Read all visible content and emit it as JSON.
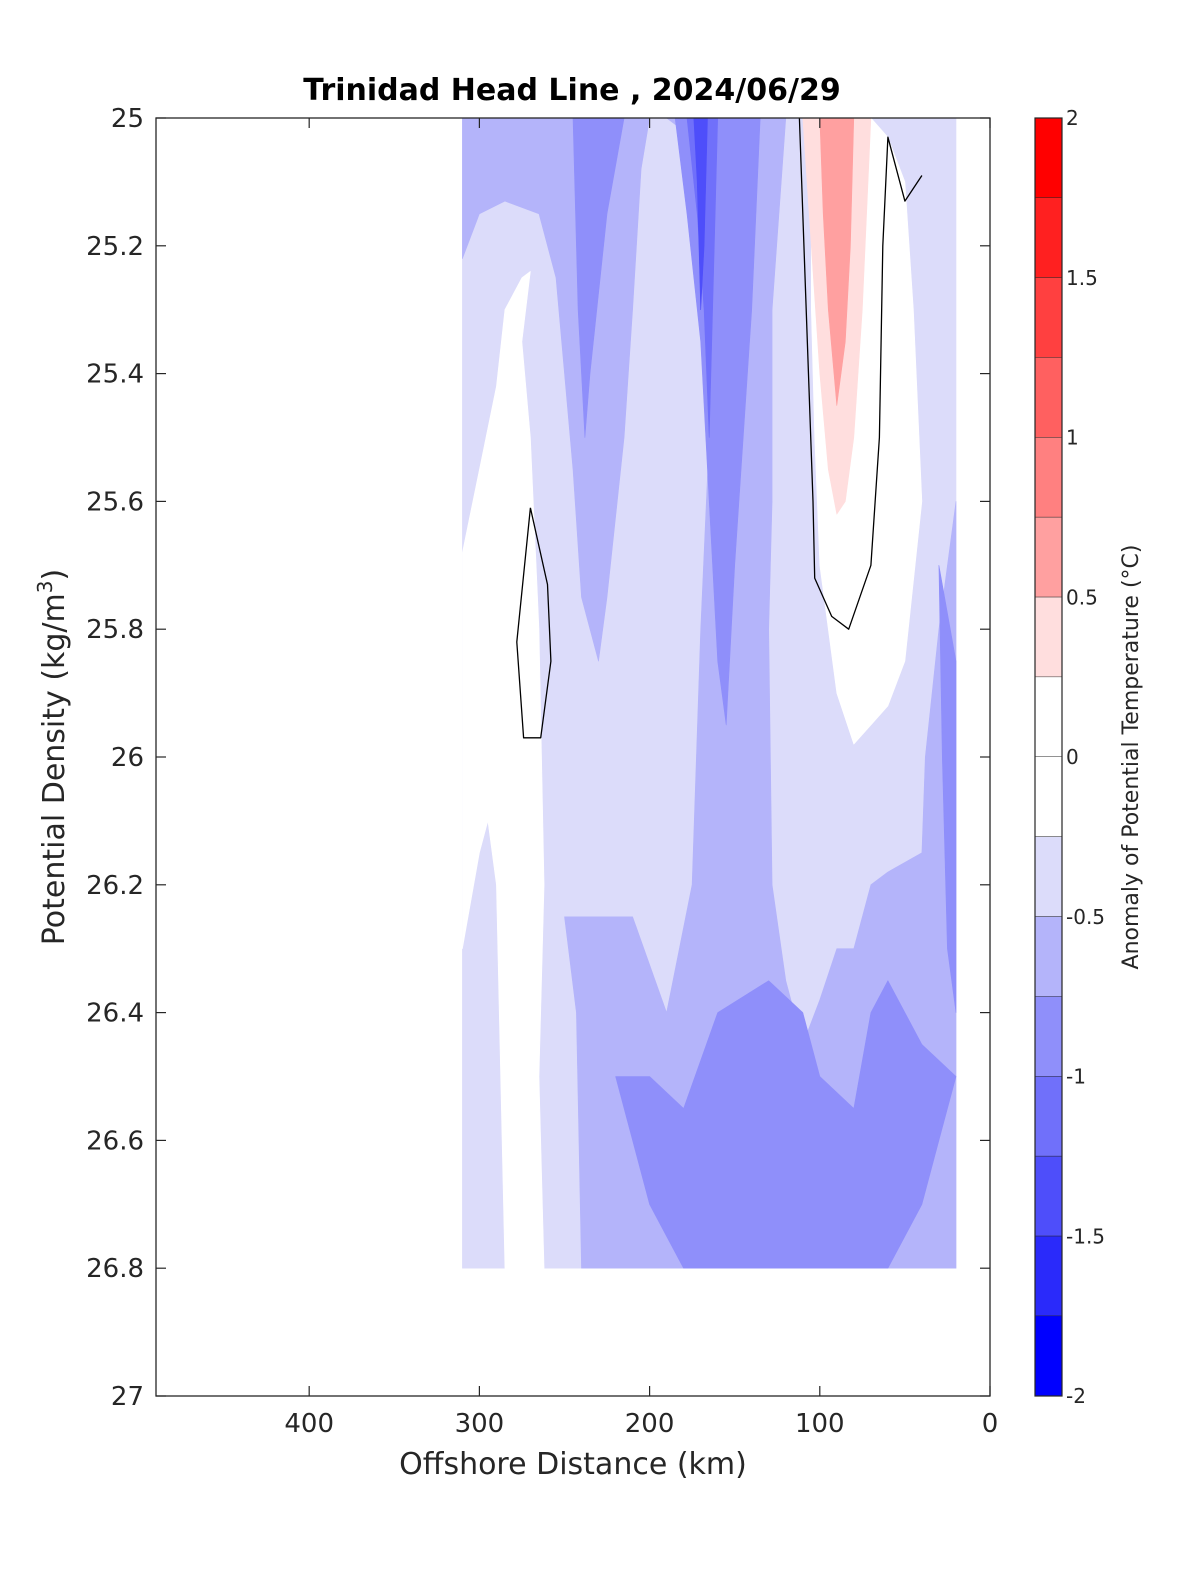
{
  "chart_data": {
    "type": "heatmap",
    "subtype": "filled-contour",
    "title": "Trinidad Head Line , 2024/06/29",
    "xlabel": "Offshore Distance (km)",
    "ylabel": "Potential Density (kg/m",
    "ylabel_sup": "3",
    "ylabel_close": ")",
    "xlim": [
      490,
      0
    ],
    "x_reversed": true,
    "ylim": [
      25,
      27
    ],
    "y_reversed": true,
    "x_ticks": [
      400,
      300,
      200,
      100,
      0
    ],
    "y_ticks": [
      25,
      25.2,
      25.4,
      25.6,
      25.8,
      26,
      26.2,
      26.4,
      26.6,
      26.8,
      27
    ],
    "y_tick_labels": [
      "25",
      "25.2",
      "25.4",
      "25.6",
      "25.8",
      "26",
      "26.2",
      "26.4",
      "26.6",
      "26.8",
      "27"
    ],
    "data_extent": {
      "x": [
        310,
        20
      ],
      "y": [
        25,
        26.8
      ]
    },
    "colorbar": {
      "label": "Anomaly of Potential Temperature (°C)",
      "range": [
        -2,
        2
      ],
      "tick_values": [
        2,
        1.5,
        1,
        0.5,
        0,
        -0.5,
        -1,
        -1.5,
        -2
      ],
      "tick_labels": [
        "2",
        "1.5",
        "1",
        "0.5",
        "0",
        "-0.5",
        "-1",
        "-1.5",
        "-2"
      ],
      "levels": [
        {
          "min": 1.75,
          "max": 2.0,
          "color": "#ff0000"
        },
        {
          "min": 1.5,
          "max": 1.75,
          "color": "#ff2020"
        },
        {
          "min": 1.25,
          "max": 1.5,
          "color": "#ff4040"
        },
        {
          "min": 1.0,
          "max": 1.25,
          "color": "#ff6060"
        },
        {
          "min": 0.75,
          "max": 1.0,
          "color": "#ff8080"
        },
        {
          "min": 0.5,
          "max": 0.75,
          "color": "#ffa0a0"
        },
        {
          "min": 0.25,
          "max": 0.5,
          "color": "#ffdede"
        },
        {
          "min": 0.0,
          "max": 0.25,
          "color": "#ffffff"
        },
        {
          "min": -0.25,
          "max": 0.0,
          "color": "#ffffff"
        },
        {
          "min": -0.5,
          "max": -0.25,
          "color": "#dcdcfa"
        },
        {
          "min": -0.75,
          "max": -0.5,
          "color": "#b4b4fa"
        },
        {
          "min": -1.0,
          "max": -0.75,
          "color": "#8f8ffa"
        },
        {
          "min": -1.25,
          "max": -1.0,
          "color": "#7070fa"
        },
        {
          "min": -1.5,
          "max": -1.25,
          "color": "#4e4efa"
        },
        {
          "min": -1.75,
          "max": -1.5,
          "color": "#2a2afa"
        },
        {
          "min": -2.0,
          "max": -1.75,
          "color": "#0000ff"
        }
      ]
    },
    "regions": [
      {
        "level": -0.5,
        "color": "#dcdcfa",
        "points": [
          [
            310,
            25
          ],
          [
            20,
            25
          ],
          [
            20,
            26.8
          ],
          [
            310,
            26.8
          ]
        ]
      },
      {
        "level": -0.25,
        "color": "#ffffff",
        "points": [
          [
            310,
            25.68
          ],
          [
            300,
            25.55
          ],
          [
            290,
            25.42
          ],
          [
            285,
            25.3
          ],
          [
            275,
            25.25
          ],
          [
            270,
            25.24
          ],
          [
            275,
            25.35
          ],
          [
            270,
            25.5
          ],
          [
            265,
            25.8
          ],
          [
            262,
            26.2
          ],
          [
            265,
            26.5
          ],
          [
            262,
            26.8
          ],
          [
            285,
            26.8
          ],
          [
            290,
            26.2
          ],
          [
            295,
            26.1
          ],
          [
            300,
            26.15
          ],
          [
            310,
            26.3
          ]
        ]
      },
      {
        "level": 0.25,
        "color": "#ffffff",
        "points": [
          [
            105,
            25
          ],
          [
            70,
            25
          ],
          [
            60,
            25.03
          ],
          [
            50,
            25.1
          ],
          [
            45,
            25.3
          ],
          [
            40,
            25.6
          ],
          [
            50,
            25.85
          ],
          [
            60,
            25.92
          ],
          [
            70,
            25.95
          ],
          [
            80,
            25.98
          ],
          [
            90,
            25.9
          ],
          [
            100,
            25.7
          ],
          [
            103,
            25.5
          ],
          [
            105,
            25.3
          ]
        ]
      },
      {
        "level": -0.75,
        "color": "#b4b4fa",
        "points": [
          [
            310,
            25.0
          ],
          [
            310,
            25.22
          ],
          [
            300,
            25.15
          ],
          [
            285,
            25.13
          ],
          [
            265,
            25.15
          ],
          [
            255,
            25.25
          ],
          [
            250,
            25.4
          ],
          [
            245,
            25.55
          ],
          [
            240,
            25.75
          ],
          [
            230,
            25.85
          ],
          [
            225,
            25.75
          ],
          [
            215,
            25.5
          ],
          [
            210,
            25.3
          ],
          [
            205,
            25.08
          ],
          [
            200,
            25.0
          ]
        ]
      },
      {
        "level": -0.75,
        "color": "#b4b4fa",
        "points": [
          [
            190,
            25.0
          ],
          [
            120,
            25.0
          ],
          [
            128,
            25.3
          ],
          [
            128,
            25.6
          ],
          [
            130,
            25.8
          ],
          [
            128,
            26.2
          ],
          [
            120,
            26.35
          ],
          [
            110,
            26.45
          ],
          [
            100,
            26.38
          ],
          [
            90,
            26.3
          ],
          [
            80,
            26.3
          ],
          [
            70,
            26.2
          ],
          [
            60,
            26.18
          ],
          [
            40,
            26.15
          ],
          [
            38,
            26.0
          ],
          [
            30,
            25.8
          ],
          [
            20,
            25.6
          ],
          [
            20,
            26.8
          ],
          [
            240,
            26.8
          ],
          [
            243,
            26.4
          ],
          [
            250,
            26.25
          ],
          [
            230,
            26.25
          ],
          [
            210,
            26.25
          ],
          [
            190,
            26.4
          ],
          [
            175,
            26.2
          ],
          [
            170,
            25.8
          ],
          [
            165,
            25.5
          ],
          [
            160,
            25.2
          ],
          [
            165,
            25.05
          ]
        ]
      },
      {
        "level": -1.0,
        "color": "#8f8ffa",
        "points": [
          [
            245,
            25.0
          ],
          [
            215,
            25.0
          ],
          [
            225,
            25.15
          ],
          [
            235,
            25.4
          ],
          [
            238,
            25.5
          ],
          [
            242,
            25.3
          ]
        ]
      },
      {
        "level": -1.0,
        "color": "#8f8ffa",
        "points": [
          [
            185,
            25.0
          ],
          [
            135,
            25.0
          ],
          [
            140,
            25.3
          ],
          [
            145,
            25.5
          ],
          [
            150,
            25.7
          ],
          [
            155,
            25.95
          ],
          [
            160,
            25.85
          ],
          [
            165,
            25.6
          ],
          [
            170,
            25.35
          ],
          [
            178,
            25.15
          ]
        ]
      },
      {
        "level": -1.0,
        "color": "#8f8ffa",
        "points": [
          [
            220,
            26.5
          ],
          [
            210,
            26.6
          ],
          [
            200,
            26.7
          ],
          [
            190,
            26.75
          ],
          [
            180,
            26.8
          ],
          [
            60,
            26.8
          ],
          [
            40,
            26.7
          ],
          [
            30,
            26.6
          ],
          [
            20,
            26.5
          ],
          [
            40,
            26.45
          ],
          [
            60,
            26.35
          ],
          [
            70,
            26.4
          ],
          [
            80,
            26.55
          ],
          [
            100,
            26.5
          ],
          [
            110,
            26.4
          ],
          [
            130,
            26.35
          ],
          [
            160,
            26.4
          ],
          [
            180,
            26.55
          ],
          [
            200,
            26.5
          ]
        ]
      },
      {
        "level": -1.25,
        "color": "#7070fa",
        "points": [
          [
            178,
            25.0
          ],
          [
            160,
            25.0
          ],
          [
            163,
            25.3
          ],
          [
            165,
            25.5
          ],
          [
            168,
            25.3
          ],
          [
            172,
            25.15
          ]
        ]
      },
      {
        "level": -1.5,
        "color": "#4e4efa",
        "points": [
          [
            174,
            25.0
          ],
          [
            166,
            25.0
          ],
          [
            168,
            25.2
          ],
          [
            170,
            25.3
          ],
          [
            172,
            25.1
          ]
        ]
      },
      {
        "level": -1.0,
        "color": "#8f8ffa",
        "points": [
          [
            30,
            25.7
          ],
          [
            20,
            25.85
          ],
          [
            20,
            26.4
          ],
          [
            25,
            26.3
          ],
          [
            28,
            26.0
          ]
        ]
      },
      {
        "level": 0.5,
        "color": "#ffdede",
        "points": [
          [
            110,
            25.0
          ],
          [
            70,
            25.0
          ],
          [
            75,
            25.3
          ],
          [
            80,
            25.5
          ],
          [
            85,
            25.6
          ],
          [
            90,
            25.62
          ],
          [
            95,
            25.55
          ],
          [
            100,
            25.4
          ],
          [
            105,
            25.2
          ]
        ]
      },
      {
        "level": 0.75,
        "color": "#ffa0a0",
        "points": [
          [
            100,
            25.0
          ],
          [
            80,
            25.0
          ],
          [
            82,
            25.2
          ],
          [
            85,
            25.35
          ],
          [
            90,
            25.45
          ],
          [
            95,
            25.3
          ],
          [
            98,
            25.15
          ]
        ]
      }
    ],
    "contour_lines": [
      {
        "level": 0,
        "points": [
          [
            112,
            25.0
          ],
          [
            108,
            25.3
          ],
          [
            104,
            25.6
          ],
          [
            103,
            25.72
          ],
          [
            93,
            25.78
          ],
          [
            83,
            25.8
          ],
          [
            70,
            25.7
          ],
          [
            65,
            25.5
          ],
          [
            63,
            25.2
          ],
          [
            60,
            25.03
          ],
          [
            50,
            25.13
          ],
          [
            40,
            25.09
          ]
        ]
      },
      {
        "level": 0,
        "points": [
          [
            270,
            25.61
          ],
          [
            260,
            25.73
          ],
          [
            258,
            25.85
          ],
          [
            264,
            25.97
          ],
          [
            274,
            25.97
          ],
          [
            278,
            25.82
          ],
          [
            270,
            25.61
          ]
        ]
      }
    ]
  }
}
